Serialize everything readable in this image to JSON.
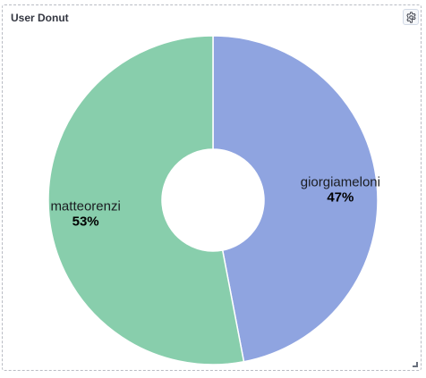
{
  "panel": {
    "title": "User Donut"
  },
  "icons": {
    "settings": "gear-icon",
    "resize": "resize-handle-icon"
  },
  "colors": {
    "giorgiameloni": "#8fa4e0",
    "matteorenzi": "#88ceac",
    "border": "#b9bcc4"
  },
  "chart_data": {
    "type": "pie",
    "title": "User Donut",
    "donut": true,
    "slices": [
      {
        "label": "giorgiameloni",
        "value": 47,
        "display": "47%",
        "color": "#8fa4e0"
      },
      {
        "label": "matteorenzi",
        "value": 53,
        "display": "53%",
        "color": "#88ceac"
      }
    ],
    "start": "top",
    "direction": "clockwise",
    "legend": "none"
  }
}
